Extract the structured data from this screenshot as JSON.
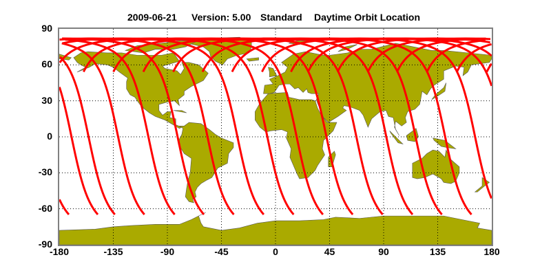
{
  "title": {
    "date": "2009-06-21",
    "version": "Version: 5.00",
    "product": "Standard",
    "plot_label": "Daytime Orbit Location"
  },
  "colors": {
    "land": "#aaaa00",
    "coast": "#555555",
    "track": "#ff0000",
    "frame": "#808080",
    "grid": "#000000"
  },
  "axes": {
    "y_ticks": [
      "90",
      "60",
      "30",
      "0",
      "-30",
      "-60",
      "-90"
    ],
    "x_ticks": [
      "-180",
      "-135",
      "-90",
      "-45",
      "0",
      "45",
      "90",
      "135",
      "180"
    ],
    "lat_range": [
      -90,
      90
    ],
    "lon_range": [
      -180,
      180
    ],
    "grid": true
  },
  "chart_data": {
    "type": "map",
    "projection": "equirectangular",
    "orbit_tracks_southern_end_lat": -65,
    "orbit_tracks_southern_end_lon": [
      -171.8,
      -147.7,
      -133.5,
      -108.9,
      -83.7,
      -59.4,
      -34.5,
      -9.6,
      15.3,
      39.7,
      64.5,
      89.4,
      114.3,
      138.7,
      163.3
    ],
    "max_lat": 82
  }
}
